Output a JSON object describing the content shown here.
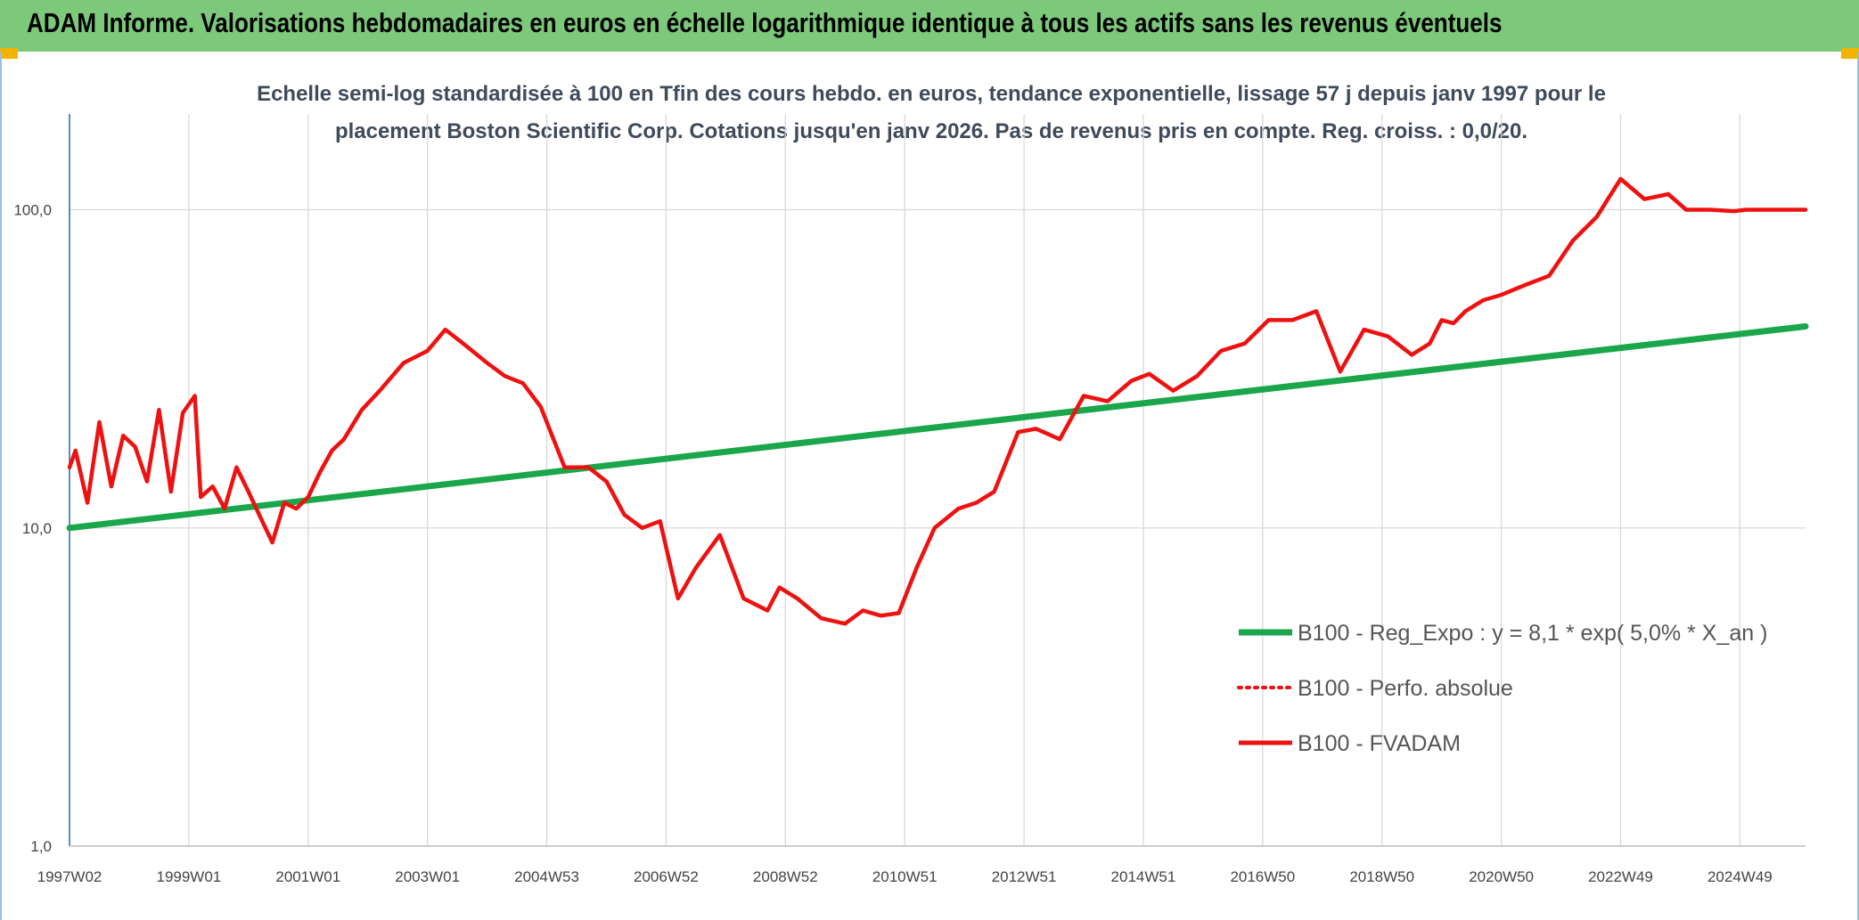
{
  "header": {
    "title": "ADAM Informe. Valorisations hebdomadaires en euros en échelle logarithmique identique à tous les actifs sans les revenus éventuels"
  },
  "colors": {
    "banner": "#7cc97a",
    "trend": "#1aa64a",
    "price": "#ee1111",
    "grid": "#d9d9d9"
  },
  "chart_data": {
    "type": "line",
    "title_line1": "Echelle semi-log standardisée à 100 en Tfin des cours hebdo. en euros, tendance exponentielle, lissage 57 j depuis janv 1997 pour le",
    "title_line2": "placement Boston Scientific Corp. Cotations jusqu'en janv 2026. Pas de revenus pris en compte. Reg. croiss. : 0,0/20.",
    "y_scale": "log",
    "ylim": [
      1,
      200
    ],
    "xlim": [
      1997.0,
      2026.1
    ],
    "grid": true,
    "legend_position": "right",
    "y_ticks": [
      {
        "value": 1,
        "label": "1,0"
      },
      {
        "value": 10,
        "label": "10,0"
      },
      {
        "value": 100,
        "label": "100,0"
      }
    ],
    "x_ticks": [
      {
        "value": 1997.0,
        "label": "1997W02"
      },
      {
        "value": 1999.0,
        "label": "1999W01"
      },
      {
        "value": 2001.0,
        "label": "2001W01"
      },
      {
        "value": 2003.0,
        "label": "2003W01"
      },
      {
        "value": 2005.0,
        "label": "2004W53"
      },
      {
        "value": 2007.0,
        "label": "2006W52"
      },
      {
        "value": 2009.0,
        "label": "2008W52"
      },
      {
        "value": 2011.0,
        "label": "2010W51"
      },
      {
        "value": 2013.0,
        "label": "2012W51"
      },
      {
        "value": 2015.0,
        "label": "2014W51"
      },
      {
        "value": 2017.0,
        "label": "2016W50"
      },
      {
        "value": 2019.0,
        "label": "2018W50"
      },
      {
        "value": 2021.0,
        "label": "2020W50"
      },
      {
        "value": 2023.0,
        "label": "2022W49"
      },
      {
        "value": 2025.0,
        "label": "2024W49"
      }
    ],
    "legend": [
      {
        "label": "B100 - Reg_Expo : y = 8,1 * exp( 5,0% *  X_an )",
        "color": "#1aa64a",
        "style": "solid"
      },
      {
        "label": "B100 - Perfo. absolue",
        "color": "#ee1111",
        "style": "dotted"
      },
      {
        "label": "B100 - FVADAM",
        "color": "#ee1111",
        "style": "solid"
      }
    ],
    "series": [
      {
        "name": "B100 - Reg_Expo : y = 8,1 * exp( 5,0% *  X_an )",
        "x": [
          1997.0,
          2026.1
        ],
        "y": [
          10.0,
          43.0
        ]
      },
      {
        "name": "B100 - FVADAM",
        "x": [
          1997.0,
          1997.1,
          1997.3,
          1997.5,
          1997.7,
          1997.9,
          1998.1,
          1998.3,
          1998.5,
          1998.7,
          1998.9,
          1999.1,
          1999.2,
          1999.4,
          1999.6,
          1999.8,
          2000.0,
          2000.2,
          2000.4,
          2000.6,
          2000.8,
          2001.0,
          2001.2,
          2001.4,
          2001.6,
          2001.9,
          2002.2,
          2002.6,
          2003.0,
          2003.3,
          2003.6,
          2004.0,
          2004.3,
          2004.6,
          2004.9,
          2005.3,
          2005.7,
          2006.0,
          2006.3,
          2006.6,
          2006.9,
          2007.2,
          2007.5,
          2007.9,
          2008.3,
          2008.7,
          2008.9,
          2009.2,
          2009.6,
          2010.0,
          2010.3,
          2010.6,
          2010.9,
          2011.2,
          2011.5,
          2011.9,
          2012.2,
          2012.5,
          2012.9,
          2013.2,
          2013.6,
          2014.0,
          2014.4,
          2014.8,
          2015.1,
          2015.5,
          2015.9,
          2016.3,
          2016.7,
          2017.1,
          2017.5,
          2017.9,
          2018.3,
          2018.7,
          2019.1,
          2019.5,
          2019.8,
          2020.0,
          2020.2,
          2020.4,
          2020.7,
          2021.0,
          2021.4,
          2021.8,
          2022.2,
          2022.6,
          2023.0,
          2023.4,
          2023.8,
          2024.1,
          2024.5,
          2024.9,
          2025.1,
          2025.4,
          2025.7,
          2026.0,
          2026.1
        ],
        "y": [
          15.5,
          17.5,
          12.0,
          21.5,
          13.5,
          19.5,
          18.0,
          14.0,
          23.5,
          13.0,
          23.0,
          26.0,
          12.5,
          13.5,
          11.5,
          15.5,
          13.0,
          10.8,
          9.0,
          12.0,
          11.5,
          12.5,
          15.0,
          17.5,
          19.0,
          23.5,
          27.0,
          33.0,
          36.0,
          42.0,
          38.0,
          33.0,
          30.0,
          28.5,
          24.0,
          15.5,
          15.5,
          14.0,
          11.0,
          10.0,
          10.5,
          6.0,
          7.5,
          9.5,
          6.0,
          5.5,
          6.5,
          6.0,
          5.2,
          5.0,
          5.5,
          5.3,
          5.4,
          7.5,
          10.0,
          11.5,
          12.0,
          13.0,
          20.0,
          20.5,
          19.0,
          26.0,
          25.0,
          29.0,
          30.5,
          27.0,
          30.0,
          36.0,
          38.0,
          45.0,
          45.0,
          48.0,
          31.0,
          42.0,
          40.0,
          35.0,
          38.0,
          45.0,
          44.0,
          48.0,
          52.0,
          54.0,
          58.0,
          62.0,
          80.0,
          95.0,
          125.0,
          108.0,
          112.0,
          100.0,
          100.0,
          99.0,
          100.0,
          100.0,
          100.0,
          100.0,
          100.0
        ]
      }
    ]
  }
}
